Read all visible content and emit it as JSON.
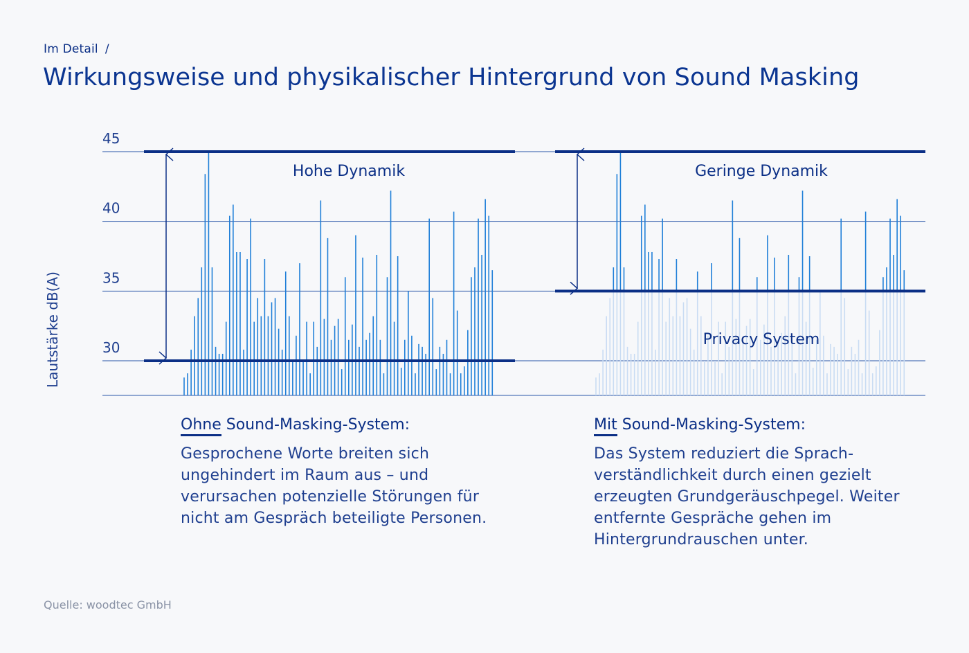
{
  "header": {
    "breadcrumb": "Im Detail",
    "breadcrumb_separator": "/",
    "title": "Wirkungsweise und physikalischer Hintergrund von Sound Masking"
  },
  "chart_data": {
    "type": "bar",
    "ylabel": "Lautstärke dB(A)",
    "yticks": [
      30,
      35,
      40,
      45
    ],
    "ylim": [
      27.5,
      45
    ],
    "grid": true,
    "colors": {
      "bars": "#1f7fd8",
      "bars_faded": "#c9dcf3",
      "thick_line": "#0b2f86",
      "grid": "#2a56a8",
      "text": "#0b2f86"
    },
    "panels": [
      {
        "name": "Ohne Sound-Masking-System",
        "region_label": "Hohe Dynamik",
        "dynamic_range": [
          30,
          45
        ],
        "values": [
          28.8,
          29.1,
          30.8,
          33.2,
          34.5,
          36.7,
          43.4,
          45.0,
          36.7,
          31.0,
          30.5,
          30.5,
          32.8,
          40.4,
          41.2,
          37.8,
          37.8,
          30.8,
          37.3,
          40.2,
          32.8,
          34.5,
          33.2,
          37.3,
          33.2,
          34.2,
          34.5,
          32.3,
          30.8,
          36.4,
          33.2,
          30.0,
          31.8,
          37.0,
          30.0,
          32.8,
          29.1,
          32.8,
          31.0,
          41.5,
          33.0,
          38.8,
          31.5,
          32.5,
          33.0,
          29.4,
          36.0,
          31.5,
          32.6,
          39.0,
          31.0,
          37.4,
          31.5,
          32.0,
          33.2,
          37.6,
          31.5,
          29.1,
          36.0,
          42.2,
          32.8,
          37.5,
          29.5,
          31.5,
          35.0,
          31.8,
          29.1,
          31.2,
          31.0,
          30.5,
          40.2,
          34.5,
          29.4,
          31.0,
          30.5,
          31.5,
          29.1,
          40.7,
          33.6,
          29.1,
          29.6,
          32.2,
          36.0,
          36.7,
          40.2,
          37.6,
          41.6,
          40.4,
          36.5
        ]
      },
      {
        "name": "Mit Sound-Masking-System",
        "region_label": "Geringe Dynamik",
        "privacy_label": "Privacy System",
        "dynamic_range": [
          35,
          45
        ],
        "masking_level": 35,
        "values": [
          28.8,
          29.1,
          30.8,
          33.2,
          34.5,
          36.7,
          43.4,
          45.0,
          36.7,
          31.0,
          30.5,
          30.5,
          32.8,
          40.4,
          41.2,
          37.8,
          37.8,
          30.8,
          37.3,
          40.2,
          32.8,
          34.5,
          33.2,
          37.3,
          33.2,
          34.2,
          34.5,
          32.3,
          30.8,
          36.4,
          33.2,
          30.0,
          31.8,
          37.0,
          30.0,
          32.8,
          29.1,
          32.8,
          31.0,
          41.5,
          33.0,
          38.8,
          31.5,
          32.5,
          33.0,
          29.4,
          36.0,
          31.5,
          32.6,
          39.0,
          31.0,
          37.4,
          31.5,
          32.0,
          33.2,
          37.6,
          31.5,
          29.1,
          36.0,
          42.2,
          32.8,
          37.5,
          29.5,
          31.5,
          35.0,
          31.8,
          29.1,
          31.2,
          31.0,
          30.5,
          40.2,
          34.5,
          29.4,
          31.0,
          30.5,
          31.5,
          29.1,
          40.7,
          33.6,
          29.1,
          29.6,
          32.2,
          36.0,
          36.7,
          40.2,
          37.6,
          41.6,
          40.4,
          36.5
        ]
      }
    ]
  },
  "descriptions": [
    {
      "heading_emphasis": "Ohne",
      "heading_rest": " Sound-Masking-System:",
      "text": "Gesprochene Worte breiten sich ungehindert im Raum aus – und verursachen potenzielle Störungen für nicht am Gespräch beteiligte Personen."
    },
    {
      "heading_emphasis": "Mit",
      "heading_rest": " Sound-Masking-System:",
      "text": "Das System reduziert die Sprach-verständlichkeit durch einen gezielt erzeugten Grundgeräuschpegel. Weiter entfernte Gespräche gehen im Hintergrundrauschen unter."
    }
  ],
  "footer": {
    "source": "Quelle: woodtec GmbH"
  }
}
